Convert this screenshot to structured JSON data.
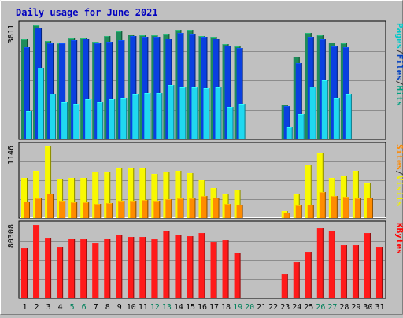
{
  "chart_data": {
    "type": "bar",
    "title": "Daily usage for June 2021",
    "days": [
      "1",
      "2",
      "3",
      "4",
      "5",
      "6",
      "7",
      "8",
      "9",
      "10",
      "11",
      "12",
      "13",
      "14",
      "15",
      "16",
      "17",
      "18",
      "19",
      "20",
      "21",
      "22",
      "23",
      "24",
      "25",
      "26",
      "27",
      "28",
      "29",
      "30",
      "31"
    ],
    "weekend_days": [
      "5",
      "6",
      "12",
      "13",
      "19",
      "20",
      "26",
      "27"
    ],
    "panels": [
      {
        "max_label": "3811",
        "ylim": [
          0,
          3811
        ],
        "legend": [
          "Pages",
          "/",
          "Files",
          "/",
          "Hits"
        ],
        "legend_colors": [
          "#00c8c8",
          "#333333",
          "#0040c0",
          "#333333",
          "#00a080"
        ],
        "series": [
          {
            "name": "Hits",
            "color": "#1e8c5a",
            "values": [
              3346,
              3811,
              3296,
              3209,
              3382,
              3382,
              3268,
              3431,
              3610,
              3502,
              3466,
              3466,
              3521,
              3666,
              3666,
              3431,
              3411,
              3178,
              3109,
              null,
              null,
              null,
              1158,
              2751,
              3541,
              3466,
              3234,
              3209,
              null,
              null,
              null
            ]
          },
          {
            "name": "Files",
            "color": "#0a40e0",
            "values": [
              3085,
              3734,
              3213,
              3197,
              3315,
              3353,
              3197,
              3248,
              3315,
              3441,
              3426,
              3426,
              3353,
              3547,
              3529,
              3404,
              3353,
              3130,
              3058,
              null,
              null,
              null,
              1108,
              2551,
              3404,
              3330,
              3109,
              3085,
              null,
              null,
              null
            ]
          },
          {
            "name": "Pages",
            "color": "#20d8f0",
            "values": [
              958,
              2380,
              1524,
              1233,
              1173,
              1330,
              1233,
              1330,
              1368,
              1507,
              1558,
              1558,
              1802,
              1735,
              1735,
              1719,
              1735,
              1066,
              1190,
              null,
              null,
              null,
              427,
              837,
              1751,
              1979,
              1373,
              1508,
              null,
              null,
              null
            ]
          }
        ]
      },
      {
        "max_label": "1146",
        "ylim": [
          0,
          1146
        ],
        "legend": [
          "Sites",
          "/",
          "Visits"
        ],
        "legend_colors": [
          "#ff8800",
          "#333333",
          "#f0f000"
        ],
        "series": [
          {
            "name": "Visits",
            "color": "#f8f800",
            "values": [
              636,
              759,
              1146,
              625,
              648,
              648,
              743,
              728,
              797,
              793,
              797,
              708,
              740,
              759,
              716,
              605,
              480,
              376,
              457,
              null,
              null,
              null,
              110,
              382,
              861,
              1034,
              636,
              667,
              759,
              554,
              null
            ]
          },
          {
            "name": "Sites",
            "color": "#ff8c00",
            "values": [
              260,
              319,
              389,
              273,
              247,
              247,
              229,
              241,
              281,
              278,
              289,
              281,
              299,
              312,
              315,
              351,
              331,
              229,
              212,
              null,
              null,
              null,
              91,
              206,
              213,
              421,
              352,
              339,
              315,
              327,
              null
            ]
          }
        ]
      },
      {
        "max_label": "80308",
        "ylim": [
          0,
          80308
        ],
        "legend": [
          "KBytes"
        ],
        "legend_colors": [
          "#ff0000"
        ],
        "series": [
          {
            "name": "KBytes",
            "color": "#ff1a1a",
            "values": [
              55300,
              80308,
              66700,
              56400,
              65700,
              65100,
              60100,
              65400,
              70100,
              67000,
              67700,
              64400,
              74000,
              69800,
              68400,
              71500,
              61400,
              64200,
              50000,
              null,
              null,
              null,
              26600,
              39400,
              50900,
              76700,
              74000,
              58600,
              58800,
              71700,
              56100
            ]
          }
        ]
      }
    ]
  }
}
